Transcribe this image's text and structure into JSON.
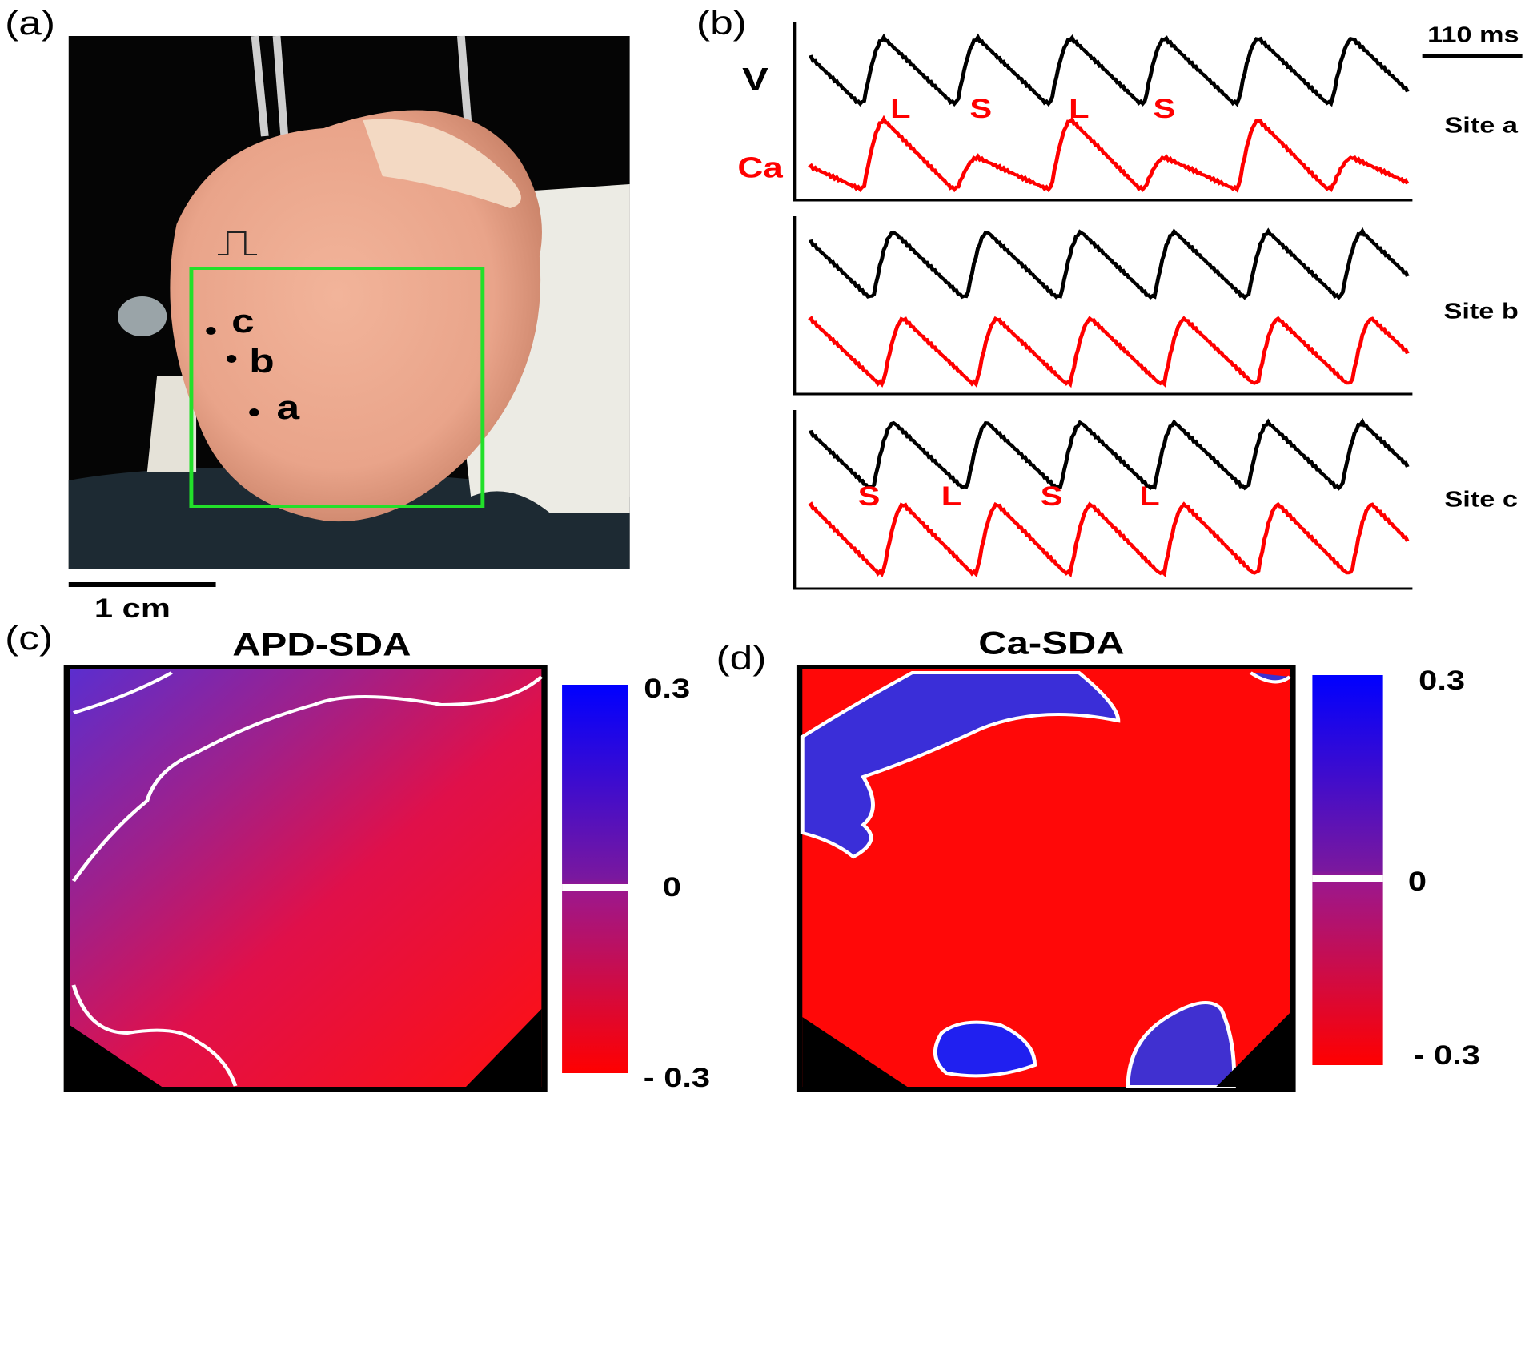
{
  "panels": {
    "a": {
      "label": "(a)",
      "scale_bar": "1 cm",
      "sites": [
        "c",
        "b",
        "a"
      ]
    },
    "b": {
      "label": "(b)",
      "scale_bar": "110 ms",
      "signals": [
        "V",
        "Ca"
      ],
      "sites": [
        "Site a",
        "Site b",
        "Site c"
      ],
      "site_a_marks": [
        "L",
        "S",
        "L",
        "S"
      ],
      "site_c_marks": [
        "S",
        "L",
        "S",
        "L"
      ]
    },
    "c": {
      "label": "(c)",
      "title": "APD-SDA",
      "colorbar": [
        "0.3",
        "0",
        "- 0.3"
      ]
    },
    "d": {
      "label": "(d)",
      "title": "Ca-SDA",
      "colorbar": [
        "0.3",
        "0",
        "- 0.3"
      ]
    }
  }
}
